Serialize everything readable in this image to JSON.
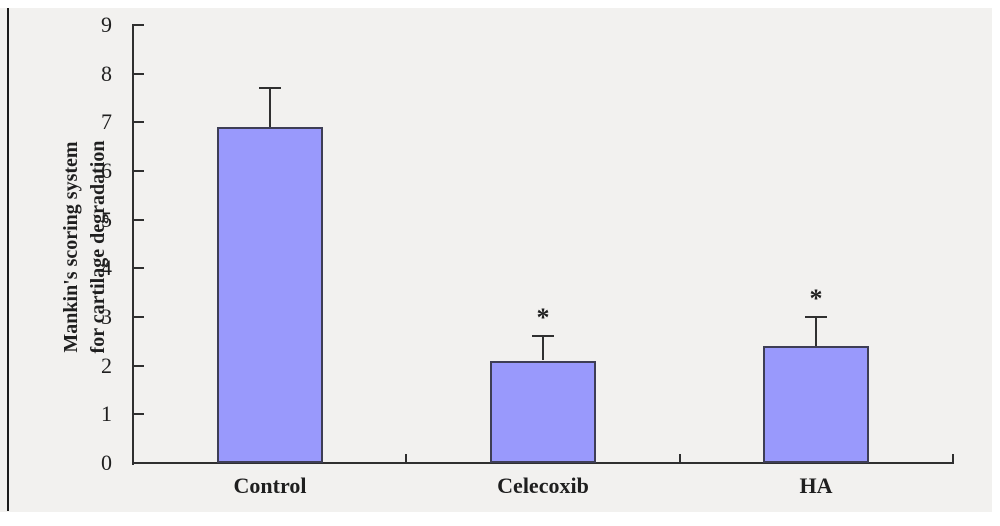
{
  "chart_data": {
    "type": "bar",
    "categories": [
      "Control",
      "Celecoxib",
      "HA"
    ],
    "values": [
      6.9,
      2.1,
      2.4
    ],
    "error_plus": [
      0.8,
      0.5,
      0.6
    ],
    "significance_markers": [
      "",
      "*",
      "*"
    ],
    "ylabel_lines": [
      "Mankin's scoring system",
      "for cartilage degradation"
    ],
    "xlabel": "",
    "title": "",
    "ylim": [
      0,
      9
    ],
    "ytick_interval": 1,
    "grid": "off",
    "legend": "none",
    "tick_style": "inside",
    "colors": {
      "bar_fill": "#9999fc",
      "bar_border": "#3e3e55",
      "axis": "#2f2f2f",
      "error_bar": "#303030",
      "text": "#1f1f1f",
      "panel_bg": "#f2f1ef",
      "page_bg": "#ffffff",
      "edge_line": "#1b1b1b"
    }
  }
}
